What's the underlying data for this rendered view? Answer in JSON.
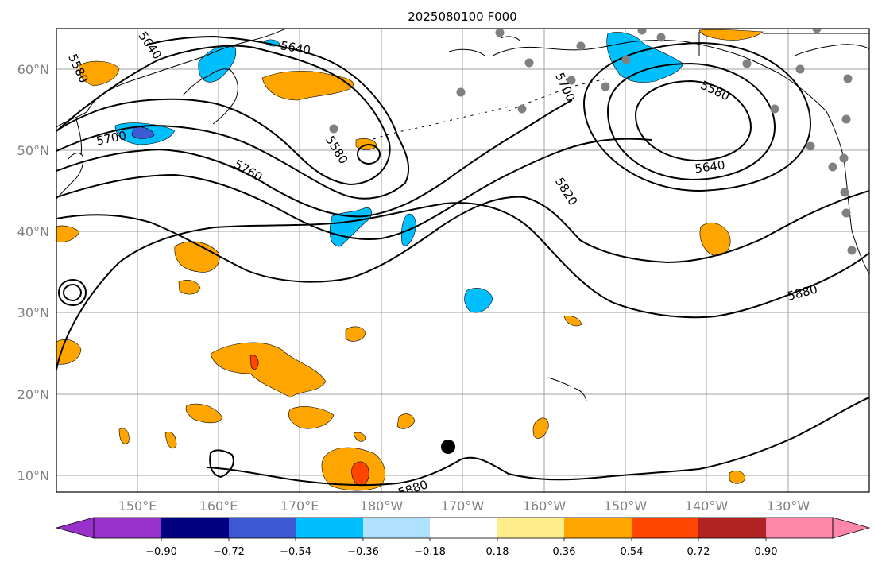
{
  "title": "2025080100 F000",
  "map": {
    "lat_labels": [
      "60°N",
      "50°N",
      "40°N",
      "30°N",
      "20°N",
      "10°N"
    ],
    "lon_labels": [
      "150°E",
      "160°E",
      "170°E",
      "180°W",
      "170°W",
      "160°W",
      "150°W",
      "140°W",
      "130°W"
    ],
    "contour_labels": [
      "5580",
      "5640",
      "5700",
      "5580",
      "5760",
      "5700",
      "5580",
      "5640",
      "5820",
      "5880",
      "5880",
      "5640"
    ],
    "fill_colors": {
      "pos_036": "#ffa500",
      "pos_054": "#ff4500",
      "pos_018": "#ffec8b",
      "neg_036": "#00bfff",
      "neg_054": "#3b5bd6",
      "neg_018": "#b0e2ff"
    },
    "station_color": "#808080"
  },
  "colorbar": {
    "colors": [
      "#9932cc",
      "#000080",
      "#3c58d2",
      "#00bfff",
      "#b0e2ff",
      "#ffffff",
      "#ffec8b",
      "#ffa500",
      "#ff4500",
      "#b22222",
      "#ff88aa"
    ],
    "tick_labels": [
      "−0.90",
      "−0.72",
      "−0.54",
      "−0.36",
      "−0.18",
      "0.18",
      "0.36",
      "0.54",
      "0.72",
      "0.90"
    ]
  }
}
